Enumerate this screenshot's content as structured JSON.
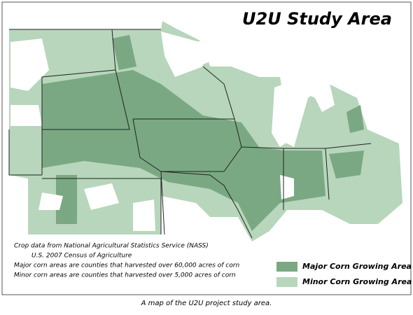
{
  "title": "U2U Study Area",
  "source_notes": [
    "Crop data from National Agricultural Statistics Service (NASS)",
    "U.S. 2007 Census of Agriculture",
    "Major corn areas are counties that harvested over 60,000 acres of corn",
    "Minor corn areas are counties that harvested over 5,000 acres of corn"
  ],
  "legend": [
    {
      "label": "Major Corn Growing Area",
      "color": "#7aa882"
    },
    {
      "label": "Minor Corn Growing Area",
      "color": "#b7d6bb"
    }
  ],
  "caption": "A map of the U2U project study area."
}
